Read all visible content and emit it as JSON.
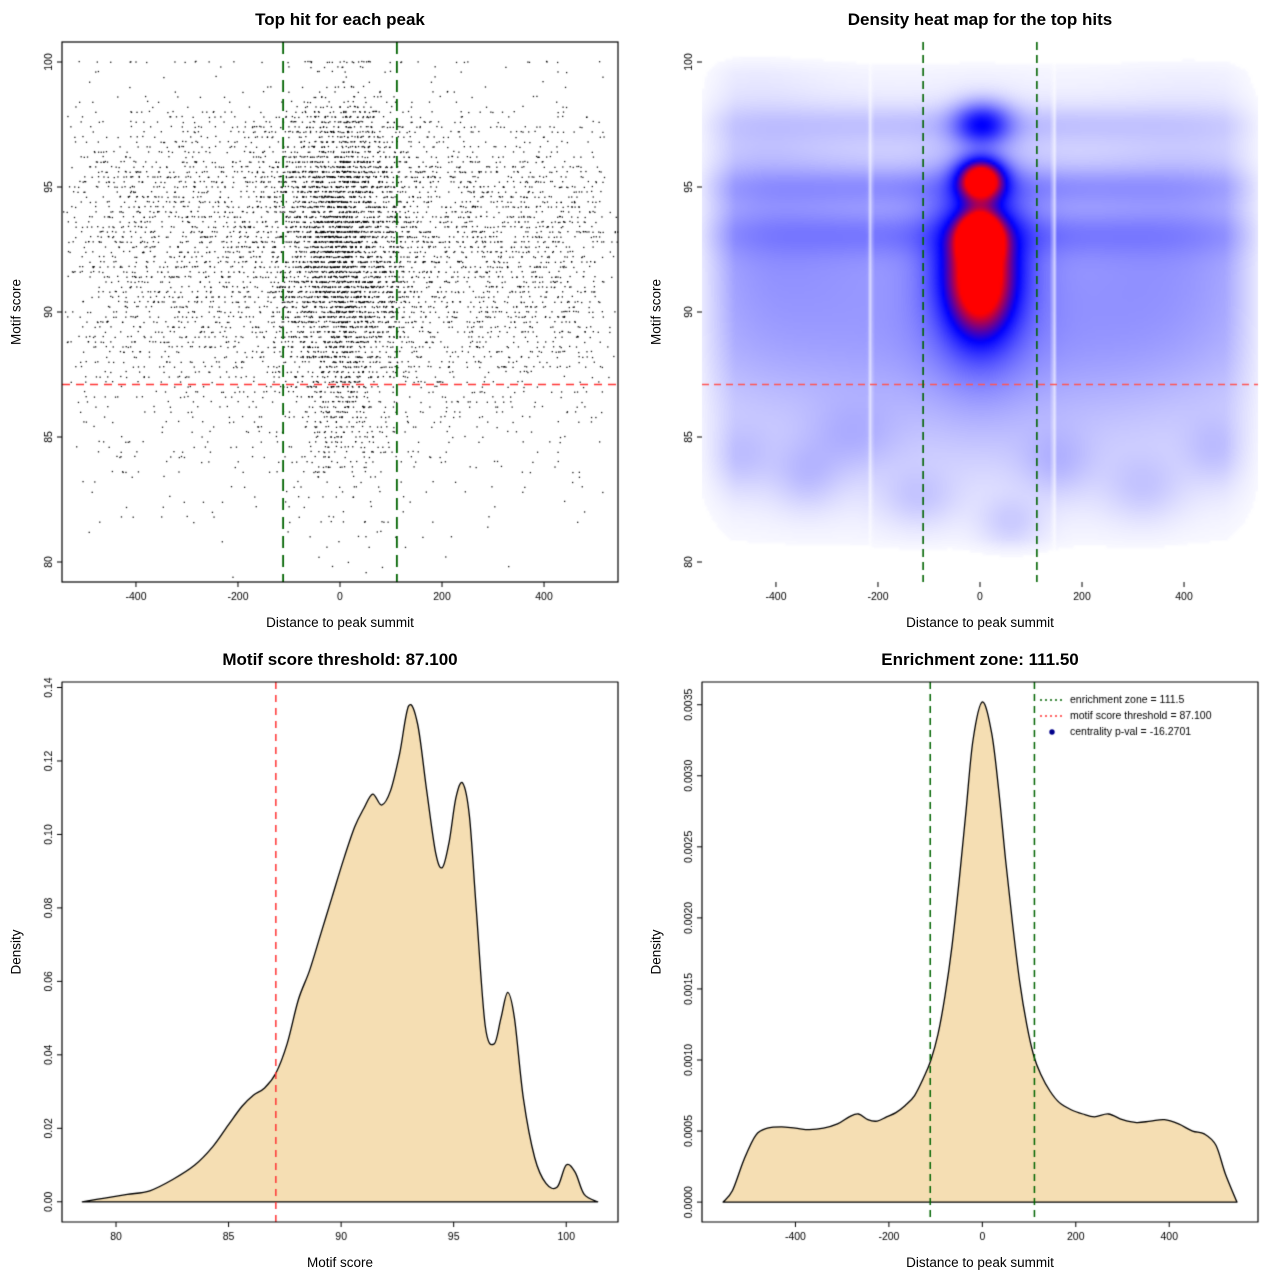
{
  "page": {
    "background": "#ffffff"
  },
  "chart_data": [
    {
      "id": "top-hits-scatter",
      "type": "scatter",
      "title": "Top hit for each peak",
      "xlabel": "Distance to peak summit",
      "ylabel": "Motif score",
      "xlim": [
        -545,
        545
      ],
      "ylim": [
        79.2,
        100.8
      ],
      "xticks": [
        -400,
        -200,
        0,
        200,
        400
      ],
      "xtick_labels": [
        "-400",
        "-200",
        "0",
        "200",
        "400"
      ],
      "yticks": [
        80,
        85,
        90,
        95,
        100
      ],
      "ytick_labels": [
        "80",
        "85",
        "90",
        "95",
        "100"
      ],
      "box": true,
      "grid": false,
      "n_points": 8000,
      "seed": 20240501,
      "point_color": "#000000",
      "score_quantum": 0.2,
      "x_density_from": 3,
      "y_density_from": 2,
      "lines": [
        {
          "orient": "h",
          "at": 87.1,
          "color": "#ff3333",
          "dash": [
            8,
            6
          ],
          "width": 1.6
        },
        {
          "orient": "v",
          "at": -111.5,
          "color": "#006400",
          "dash": [
            12,
            7
          ],
          "width": 1.8
        },
        {
          "orient": "v",
          "at": 111.5,
          "color": "#006400",
          "dash": [
            12,
            7
          ],
          "width": 1.8
        }
      ],
      "annotations": {
        "motif_score_threshold": 87.1,
        "enrichment_zone_half_width": 111.5
      }
    },
    {
      "id": "top-hits-heatmap",
      "type": "heatmap",
      "title": "Density heat map for the top hits",
      "xlabel": "Distance to peak summit",
      "ylabel": "Motif score",
      "xlim": [
        -545,
        545
      ],
      "ylim": [
        79.2,
        100.8
      ],
      "xticks": [
        -400,
        -200,
        0,
        200,
        400
      ],
      "xtick_labels": [
        "-400",
        "-200",
        "0",
        "200",
        "400"
      ],
      "yticks": [
        80,
        85,
        90,
        95,
        100
      ],
      "ytick_labels": [
        "80",
        "85",
        "90",
        "95",
        "100"
      ],
      "box": false,
      "grid": false,
      "colormap": [
        "#ffffff",
        "#0000ff",
        "#ff0000"
      ],
      "blobs": [
        [
          0,
          93.0,
          26,
          0.6,
          1.2
        ],
        [
          2,
          95.3,
          30,
          0.55,
          1.1
        ],
        [
          0,
          92.2,
          48,
          1.5,
          0.55
        ],
        [
          0,
          90.7,
          42,
          1.3,
          0.5
        ],
        [
          0,
          91.5,
          72,
          2.6,
          0.32
        ],
        [
          4,
          97.5,
          36,
          0.55,
          0.45
        ],
        [
          0,
          95.0,
          430,
          0.5,
          0.1
        ],
        [
          0,
          93.1,
          430,
          0.6,
          0.1
        ],
        [
          0,
          97.5,
          430,
          0.5,
          0.055
        ],
        [
          0,
          91.8,
          390,
          3.2,
          0.1
        ],
        [
          -310,
          92.5,
          140,
          2.8,
          0.07
        ],
        [
          300,
          91.5,
          160,
          2.8,
          0.065
        ],
        [
          0,
          88.6,
          470,
          1.7,
          0.055
        ],
        [
          0,
          85.6,
          470,
          2.2,
          0.05
        ],
        [
          -450,
          93.2,
          90,
          3.5,
          0.06
        ],
        [
          430,
          93.5,
          110,
          3.0,
          0.05
        ],
        [
          -340,
          83.5,
          45,
          0.9,
          0.06
        ],
        [
          -120,
          82.6,
          50,
          0.8,
          0.05
        ],
        [
          150,
          84.0,
          48,
          0.9,
          0.06
        ],
        [
          320,
          83.0,
          52,
          0.9,
          0.05
        ],
        [
          -250,
          85.0,
          60,
          1.0,
          0.055
        ],
        [
          60,
          81.6,
          42,
          0.7,
          0.05
        ],
        [
          460,
          84.5,
          42,
          0.9,
          0.05
        ],
        [
          -470,
          84.2,
          46,
          0.9,
          0.05
        ]
      ],
      "white_stripes": [
        -215,
        145
      ],
      "lines": [
        {
          "orient": "h",
          "at": 87.1,
          "color": "#ff5555",
          "dash": [
            7,
            5
          ],
          "width": 1.4
        },
        {
          "orient": "v",
          "at": -111.5,
          "color": "#006400",
          "dash": [
            8,
            5
          ],
          "width": 1.6
        },
        {
          "orient": "v",
          "at": 111.5,
          "color": "#006400",
          "dash": [
            8,
            5
          ],
          "width": 1.6
        }
      ]
    },
    {
      "id": "motif-score-density",
      "type": "area",
      "title": "Motif score threshold: 87.100",
      "xlabel": "Motif score",
      "ylabel": "Density",
      "xlim": [
        77.6,
        102.3
      ],
      "ylim": [
        -0.0055,
        0.1415
      ],
      "xticks": [
        80,
        85,
        90,
        95,
        100
      ],
      "xtick_labels": [
        "80",
        "85",
        "90",
        "95",
        "100"
      ],
      "yticks": [
        0,
        0.02,
        0.04,
        0.06,
        0.08,
        0.1,
        0.12,
        0.14
      ],
      "ytick_labels": [
        "0.00",
        "0.02",
        "0.04",
        "0.06",
        "0.08",
        "0.10",
        "0.12",
        "0.14"
      ],
      "box": true,
      "fill": "#f5deb3",
      "stroke": "#000000",
      "curve": {
        "x": [
          78.5,
          79.5,
          80.5,
          81.5,
          82.5,
          83.5,
          84.3,
          85.0,
          85.6,
          86.1,
          86.6,
          87.1,
          87.6,
          88.1,
          88.6,
          89.1,
          89.6,
          90.1,
          90.6,
          91.0,
          91.4,
          91.8,
          92.2,
          92.6,
          93.0,
          93.4,
          93.8,
          94.2,
          94.5,
          94.8,
          95.1,
          95.4,
          95.7,
          96.0,
          96.4,
          96.8,
          97.1,
          97.4,
          97.7,
          98.1,
          98.6,
          99.1,
          99.6,
          100.0,
          100.4,
          100.8,
          101.4
        ],
        "y": [
          0.0,
          0.001,
          0.002,
          0.003,
          0.006,
          0.01,
          0.015,
          0.021,
          0.026,
          0.029,
          0.031,
          0.035,
          0.043,
          0.055,
          0.063,
          0.073,
          0.083,
          0.093,
          0.102,
          0.107,
          0.111,
          0.108,
          0.112,
          0.122,
          0.135,
          0.13,
          0.112,
          0.095,
          0.091,
          0.098,
          0.11,
          0.114,
          0.105,
          0.08,
          0.048,
          0.043,
          0.05,
          0.057,
          0.05,
          0.028,
          0.012,
          0.005,
          0.004,
          0.01,
          0.008,
          0.002,
          0.0
        ]
      },
      "lines": [
        {
          "orient": "v",
          "at": 87.1,
          "color": "#ff3333",
          "dash": [
            7,
            6
          ],
          "width": 1.5
        }
      ],
      "annotations": {
        "motif_score_threshold": 87.1
      }
    },
    {
      "id": "summit-distance-density",
      "type": "area",
      "title": "Enrichment zone: 111.50",
      "xlabel": "Distance to peak summit",
      "ylabel": "Density",
      "xlim": [
        -600,
        590
      ],
      "ylim": [
        -0.00014,
        0.00366
      ],
      "xticks": [
        -400,
        -200,
        0,
        200,
        400
      ],
      "xtick_labels": [
        "-400",
        "-200",
        "0",
        "200",
        "400"
      ],
      "yticks": [
        0,
        0.0005,
        0.001,
        0.0015,
        0.002,
        0.0025,
        0.003,
        0.0035
      ],
      "ytick_labels": [
        "0.0000",
        "0.0005",
        "0.0010",
        "0.0015",
        "0.0020",
        "0.0025",
        "0.0030",
        "0.0035"
      ],
      "box": true,
      "fill": "#f5deb3",
      "stroke": "#000000",
      "curve": {
        "x": [
          -555,
          -535,
          -510,
          -485,
          -460,
          -430,
          -400,
          -370,
          -340,
          -310,
          -285,
          -265,
          -245,
          -225,
          -205,
          -185,
          -165,
          -145,
          -125,
          -110,
          -95,
          -80,
          -65,
          -50,
          -35,
          -20,
          0,
          20,
          35,
          50,
          65,
          80,
          95,
          110,
          125,
          145,
          165,
          190,
          215,
          240,
          270,
          300,
          330,
          360,
          390,
          420,
          450,
          475,
          500,
          520,
          545
        ],
        "y": [
          0.0,
          8e-05,
          0.0003,
          0.00047,
          0.00052,
          0.00053,
          0.00052,
          0.00051,
          0.00052,
          0.00055,
          0.0006,
          0.00062,
          0.00058,
          0.00057,
          0.0006,
          0.00063,
          0.00068,
          0.00075,
          0.00088,
          0.001,
          0.00118,
          0.00145,
          0.0018,
          0.00225,
          0.00275,
          0.00325,
          0.00352,
          0.0033,
          0.0029,
          0.0024,
          0.00195,
          0.00155,
          0.00125,
          0.00103,
          0.0009,
          0.00078,
          0.0007,
          0.00065,
          0.00062,
          0.0006,
          0.00062,
          0.00058,
          0.00056,
          0.00057,
          0.00058,
          0.00055,
          0.0005,
          0.00048,
          0.0004,
          0.0002,
          0.0
        ]
      },
      "lines": [
        {
          "orient": "v",
          "at": -111.5,
          "color": "#006400",
          "dash": [
            7,
            5
          ],
          "width": 1.5
        },
        {
          "orient": "v",
          "at": 111.5,
          "color": "#006400",
          "dash": [
            7,
            5
          ],
          "width": 1.5
        }
      ],
      "legend": {
        "items": [
          {
            "marker": "line",
            "color": "#006400",
            "dash": [
              2,
              3
            ],
            "label": "enrichment zone = 111.5"
          },
          {
            "marker": "line",
            "color": "#ff3333",
            "dash": [
              2,
              3
            ],
            "label": "motif score threshold = 87.100"
          },
          {
            "marker": "point",
            "color": "#00008b",
            "label": "centrality p-val = -16.2701"
          }
        ]
      },
      "annotations": {
        "enrichment_zone": 111.5,
        "motif_score_threshold": 87.1,
        "centrality_p_val": -16.2701
      }
    }
  ]
}
